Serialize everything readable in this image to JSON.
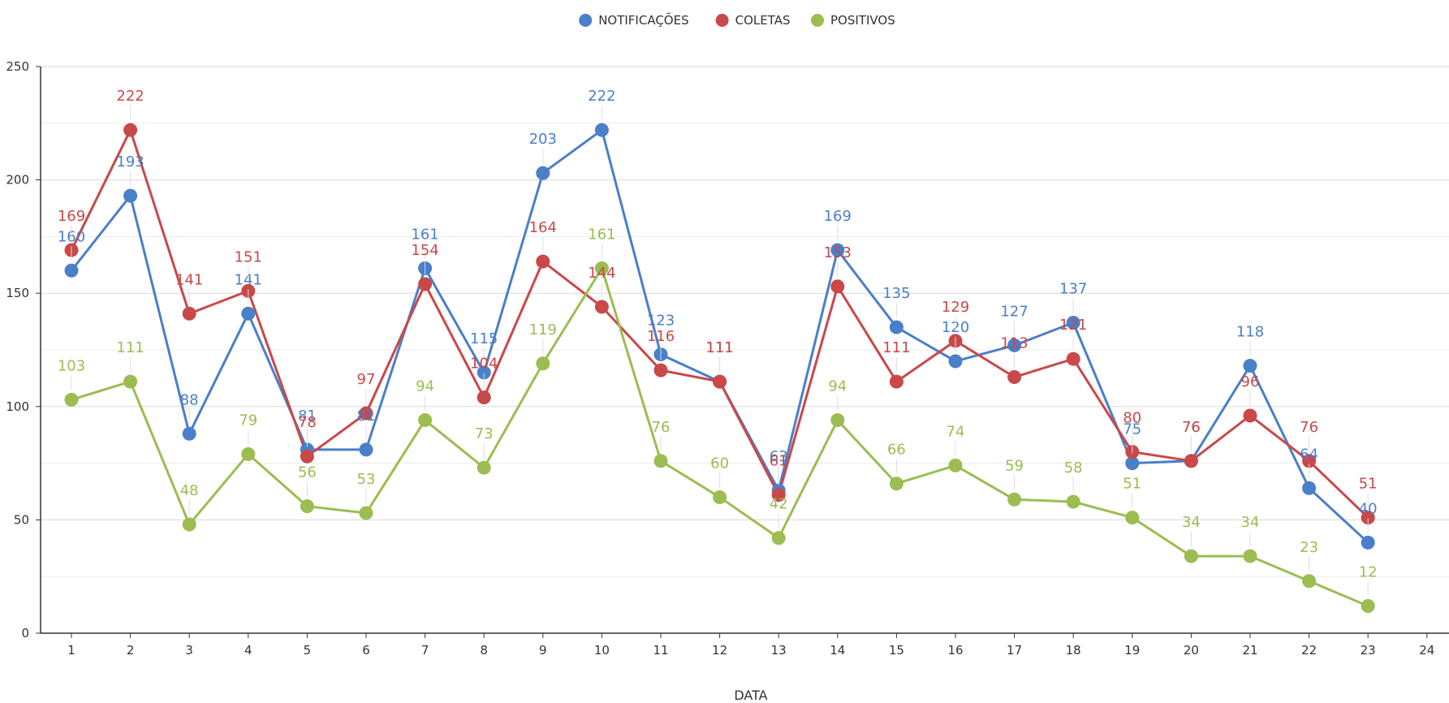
{
  "chart_data": {
    "type": "line",
    "xlabel": "DATA",
    "ylabel": "",
    "ylim": [
      0,
      250
    ],
    "xlim": [
      1,
      24
    ],
    "y_ticks": [
      0,
      50,
      100,
      150,
      200,
      250
    ],
    "x_ticks": [
      1,
      2,
      3,
      4,
      5,
      6,
      7,
      8,
      9,
      10,
      11,
      12,
      13,
      14,
      15,
      16,
      17,
      18,
      19,
      20,
      21,
      22,
      23,
      24
    ],
    "grid": true,
    "legend_position": "top-center",
    "x": [
      1,
      2,
      3,
      4,
      5,
      6,
      7,
      8,
      9,
      10,
      11,
      12,
      13,
      14,
      15,
      16,
      17,
      18,
      19,
      20,
      21,
      22,
      23
    ],
    "series": [
      {
        "name": "NOTIFICAÇÕES",
        "color": "#4a7fc9",
        "values": [
          160,
          193,
          88,
          141,
          81,
          81,
          161,
          115,
          203,
          222,
          123,
          111,
          63,
          169,
          135,
          120,
          127,
          137,
          75,
          76,
          118,
          64,
          40
        ]
      },
      {
        "name": "COLETAS",
        "color": "#c9484a",
        "values": [
          169,
          222,
          141,
          151,
          78,
          97,
          154,
          104,
          164,
          144,
          116,
          111,
          61,
          153,
          111,
          129,
          113,
          121,
          80,
          76,
          96,
          76,
          51
        ]
      },
      {
        "name": "POSITIVOS",
        "color": "#9bbd52",
        "values": [
          103,
          111,
          48,
          79,
          56,
          53,
          94,
          73,
          119,
          161,
          76,
          60,
          42,
          94,
          66,
          74,
          59,
          58,
          51,
          34,
          34,
          23,
          12
        ]
      }
    ]
  }
}
